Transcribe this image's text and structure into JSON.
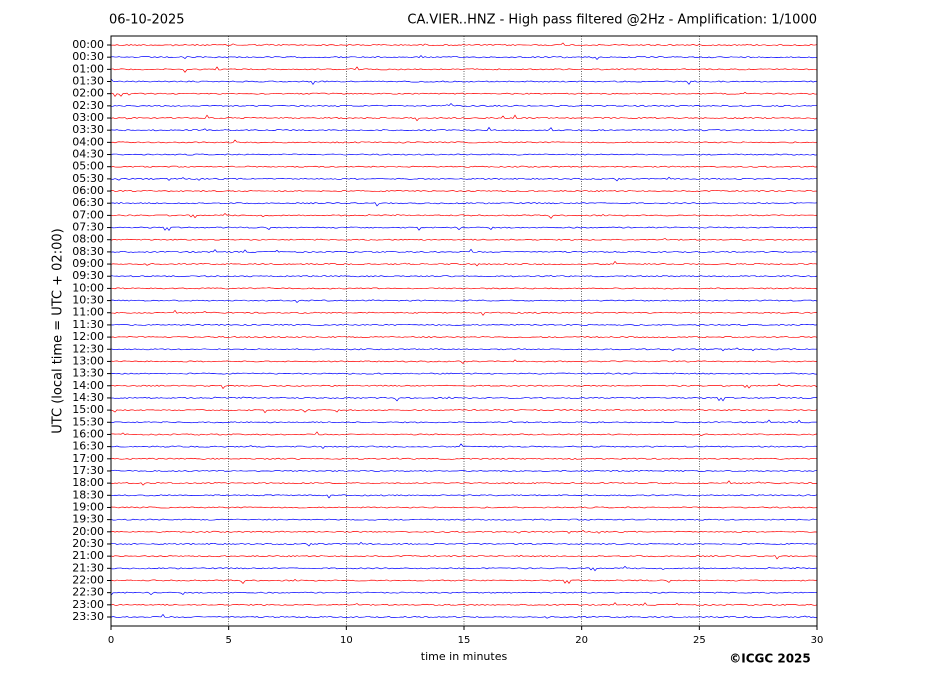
{
  "chart_data": {
    "type": "helicorder",
    "date": "06-10-2025",
    "title": "CA.VIER..HNZ - High pass filtered @2Hz - Amplification: 1/1000",
    "ylabel": "UTC (local time = UTC + 02:00)",
    "xlabel": "time in minutes",
    "copyright": "©ICGC 2025",
    "categories": [
      "00:00",
      "00:30",
      "01:00",
      "01:30",
      "02:00",
      "02:30",
      "03:00",
      "03:30",
      "04:00",
      "04:30",
      "05:00",
      "05:30",
      "06:00",
      "06:30",
      "07:00",
      "07:30",
      "08:00",
      "08:30",
      "09:00",
      "09:30",
      "10:00",
      "10:30",
      "11:00",
      "11:30",
      "12:00",
      "12:30",
      "13:00",
      "13:30",
      "14:00",
      "14:30",
      "15:00",
      "15:30",
      "16:00",
      "16:30",
      "17:00",
      "17:30",
      "18:00",
      "18:30",
      "19:00",
      "19:30",
      "20:00",
      "20:30",
      "21:00",
      "21:30",
      "22:00",
      "22:30",
      "23:00",
      "23:30"
    ],
    "trace_colors": [
      "#ff0000",
      "#0000ff"
    ],
    "xlim": [
      0,
      30
    ],
    "xticks": [
      0,
      5,
      10,
      15,
      20,
      25,
      30
    ],
    "grid": true
  }
}
